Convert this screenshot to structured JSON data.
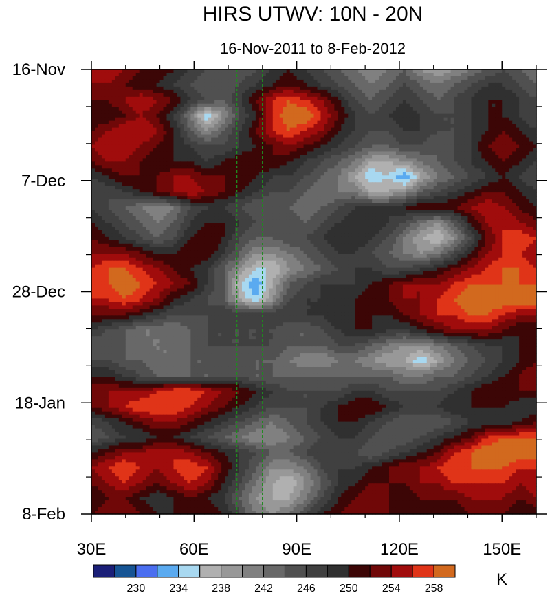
{
  "chart_data": {
    "type": "heatmap",
    "title": "HIRS UTWV: 10N - 20N",
    "subtitle": "16-Nov-2011 to 8-Feb-2012",
    "x_range": [
      30,
      160
    ],
    "x_ticks": [
      {
        "value": 30,
        "label": "30E"
      },
      {
        "value": 60,
        "label": "60E"
      },
      {
        "value": 90,
        "label": "90E"
      },
      {
        "value": 120,
        "label": "120E"
      },
      {
        "value": 150,
        "label": "150E"
      }
    ],
    "y_range_days": [
      0,
      84
    ],
    "y_ticks": [
      {
        "value": 0,
        "label": "16-Nov"
      },
      {
        "value": 21,
        "label": "7-Dec"
      },
      {
        "value": 42,
        "label": "28-Dec"
      },
      {
        "value": 63,
        "label": "18-Jan"
      },
      {
        "value": 84,
        "label": "8-Feb"
      }
    ],
    "reference_lines_lon": [
      72.5,
      80
    ],
    "colorbar": {
      "unit": "K",
      "levels": [
        228,
        230,
        232,
        234,
        236,
        238,
        240,
        242,
        244,
        246,
        248,
        250,
        252,
        254,
        256,
        258,
        260
      ],
      "colors": [
        "#1b1f78",
        "#165494",
        "#4a6ef0",
        "#5aaaf0",
        "#a8d8f0",
        "#b0b0b0",
        "#989898",
        "#808080",
        "#686868",
        "#505050",
        "#404040",
        "#303030",
        "#3c0606",
        "#700808",
        "#a00c0c",
        "#e03418",
        "#d2691e"
      ],
      "labels": [
        "230",
        "234",
        "238",
        "242",
        "246",
        "250",
        "254",
        "258"
      ],
      "label_values": [
        230,
        234,
        238,
        242,
        246,
        250,
        254,
        258
      ]
    },
    "grid_values_K": [
      [
        256,
        256,
        254,
        252,
        252,
        250,
        248,
        246,
        244,
        244,
        246,
        248,
        250,
        248,
        246,
        244,
        242,
        240,
        242,
        244,
        240,
        238,
        240,
        242,
        244,
        246,
        244,
        242
      ],
      [
        254,
        254,
        252,
        250,
        250,
        248,
        246,
        244,
        244,
        246,
        248,
        250,
        252,
        250,
        248,
        246,
        244,
        242,
        244,
        246,
        244,
        242,
        244,
        246,
        248,
        248,
        246,
        244
      ],
      [
        252,
        252,
        254,
        256,
        254,
        252,
        248,
        246,
        244,
        248,
        252,
        256,
        258,
        256,
        254,
        250,
        246,
        244,
        246,
        248,
        246,
        244,
        246,
        248,
        250,
        250,
        248,
        246
      ],
      [
        250,
        250,
        252,
        254,
        252,
        248,
        242,
        234,
        240,
        246,
        250,
        256,
        260,
        260,
        256,
        252,
        248,
        246,
        248,
        250,
        248,
        246,
        246,
        248,
        250,
        250,
        248,
        246
      ],
      [
        252,
        254,
        256,
        256,
        254,
        250,
        244,
        240,
        244,
        248,
        252,
        256,
        258,
        256,
        254,
        250,
        248,
        246,
        246,
        248,
        248,
        246,
        246,
        248,
        250,
        252,
        250,
        248
      ],
      [
        254,
        256,
        256,
        254,
        252,
        250,
        248,
        246,
        246,
        248,
        250,
        252,
        254,
        252,
        250,
        248,
        246,
        244,
        244,
        246,
        246,
        244,
        246,
        248,
        252,
        254,
        252,
        250
      ],
      [
        252,
        254,
        254,
        252,
        250,
        250,
        250,
        248,
        250,
        252,
        252,
        252,
        250,
        248,
        246,
        244,
        242,
        238,
        238,
        240,
        242,
        244,
        246,
        248,
        250,
        252,
        250,
        248
      ],
      [
        248,
        250,
        252,
        252,
        252,
        254,
        254,
        252,
        252,
        252,
        250,
        248,
        248,
        246,
        244,
        242,
        238,
        234,
        236,
        232,
        238,
        242,
        244,
        246,
        248,
        250,
        248,
        246
      ],
      [
        246,
        246,
        248,
        250,
        252,
        254,
        256,
        254,
        252,
        250,
        248,
        246,
        246,
        244,
        242,
        242,
        242,
        238,
        238,
        240,
        244,
        246,
        248,
        250,
        252,
        252,
        250,
        248
      ],
      [
        248,
        246,
        244,
        242,
        240,
        242,
        246,
        248,
        248,
        246,
        244,
        244,
        244,
        242,
        244,
        246,
        248,
        248,
        248,
        250,
        252,
        252,
        252,
        254,
        256,
        254,
        252,
        250
      ],
      [
        250,
        248,
        246,
        244,
        242,
        244,
        248,
        250,
        250,
        248,
        246,
        246,
        246,
        244,
        246,
        248,
        250,
        250,
        248,
        246,
        242,
        240,
        244,
        250,
        254,
        256,
        254,
        252
      ],
      [
        252,
        250,
        248,
        246,
        244,
        246,
        250,
        252,
        250,
        246,
        244,
        244,
        246,
        246,
        248,
        250,
        250,
        248,
        246,
        242,
        238,
        236,
        240,
        246,
        252,
        256,
        258,
        256
      ],
      [
        254,
        254,
        254,
        252,
        250,
        250,
        252,
        252,
        248,
        244,
        240,
        240,
        242,
        244,
        246,
        248,
        248,
        246,
        244,
        242,
        240,
        242,
        246,
        250,
        254,
        256,
        256,
        254
      ],
      [
        256,
        258,
        258,
        256,
        254,
        252,
        250,
        248,
        244,
        240,
        236,
        236,
        240,
        242,
        244,
        246,
        248,
        248,
        246,
        246,
        248,
        250,
        252,
        254,
        256,
        258,
        258,
        256
      ],
      [
        258,
        258,
        260,
        258,
        256,
        254,
        252,
        248,
        244,
        236,
        232,
        238,
        244,
        246,
        248,
        248,
        248,
        250,
        252,
        254,
        254,
        254,
        256,
        258,
        258,
        258,
        258,
        258
      ],
      [
        256,
        256,
        258,
        256,
        254,
        250,
        248,
        246,
        244,
        238,
        234,
        240,
        246,
        248,
        248,
        248,
        250,
        252,
        252,
        254,
        254,
        256,
        258,
        260,
        260,
        260,
        260,
        260
      ],
      [
        252,
        252,
        252,
        250,
        248,
        246,
        246,
        246,
        248,
        248,
        248,
        248,
        248,
        248,
        248,
        250,
        250,
        250,
        250,
        252,
        254,
        256,
        256,
        258,
        258,
        256,
        254,
        254
      ],
      [
        248,
        246,
        244,
        242,
        242,
        242,
        244,
        246,
        246,
        246,
        246,
        246,
        244,
        244,
        246,
        248,
        250,
        250,
        248,
        248,
        250,
        252,
        254,
        254,
        254,
        252,
        250,
        250
      ],
      [
        244,
        244,
        244,
        242,
        242,
        242,
        244,
        246,
        246,
        246,
        246,
        246,
        244,
        244,
        244,
        246,
        246,
        244,
        242,
        240,
        240,
        242,
        244,
        246,
        248,
        248,
        250,
        252
      ],
      [
        246,
        246,
        244,
        244,
        242,
        242,
        244,
        244,
        244,
        244,
        244,
        244,
        242,
        240,
        240,
        242,
        242,
        240,
        238,
        238,
        234,
        238,
        242,
        244,
        246,
        248,
        250,
        252
      ],
      [
        250,
        250,
        248,
        246,
        244,
        244,
        244,
        244,
        246,
        246,
        244,
        244,
        244,
        244,
        244,
        244,
        244,
        244,
        244,
        242,
        242,
        244,
        244,
        246,
        248,
        250,
        252,
        254
      ],
      [
        254,
        254,
        254,
        254,
        256,
        258,
        258,
        256,
        254,
        252,
        250,
        248,
        246,
        246,
        246,
        246,
        248,
        248,
        246,
        246,
        246,
        246,
        248,
        250,
        252,
        252,
        252,
        252
      ],
      [
        252,
        254,
        256,
        258,
        258,
        258,
        256,
        254,
        252,
        250,
        248,
        246,
        246,
        246,
        248,
        250,
        252,
        252,
        250,
        248,
        248,
        248,
        250,
        250,
        250,
        250,
        248,
        248
      ],
      [
        246,
        248,
        250,
        252,
        254,
        254,
        252,
        250,
        248,
        246,
        244,
        242,
        244,
        246,
        248,
        250,
        250,
        248,
        246,
        244,
        244,
        244,
        246,
        248,
        248,
        248,
        250,
        252
      ],
      [
        244,
        246,
        248,
        248,
        250,
        250,
        248,
        246,
        244,
        242,
        240,
        240,
        242,
        244,
        246,
        248,
        248,
        246,
        244,
        244,
        246,
        248,
        250,
        252,
        256,
        258,
        258,
        258
      ],
      [
        250,
        252,
        254,
        254,
        256,
        256,
        254,
        252,
        250,
        248,
        246,
        244,
        244,
        246,
        248,
        248,
        246,
        244,
        246,
        248,
        250,
        252,
        256,
        258,
        260,
        260,
        260,
        260
      ],
      [
        254,
        256,
        258,
        256,
        254,
        256,
        258,
        256,
        252,
        248,
        244,
        240,
        240,
        242,
        246,
        248,
        248,
        250,
        252,
        254,
        254,
        256,
        258,
        258,
        258,
        258,
        256,
        256
      ],
      [
        252,
        254,
        256,
        254,
        252,
        254,
        256,
        254,
        250,
        246,
        242,
        238,
        236,
        240,
        244,
        248,
        250,
        252,
        252,
        252,
        254,
        254,
        256,
        256,
        256,
        256,
        254,
        256
      ],
      [
        250,
        252,
        252,
        250,
        248,
        250,
        252,
        250,
        248,
        244,
        240,
        238,
        238,
        242,
        246,
        250,
        252,
        254,
        252,
        250,
        252,
        252,
        252,
        254,
        254,
        254,
        252,
        254
      ],
      [
        252,
        254,
        254,
        252,
        250,
        250,
        252,
        252,
        250,
        246,
        242,
        240,
        242,
        246,
        250,
        252,
        254,
        254,
        252,
        250,
        250,
        250,
        250,
        252,
        252,
        252,
        250,
        250
      ]
    ]
  }
}
